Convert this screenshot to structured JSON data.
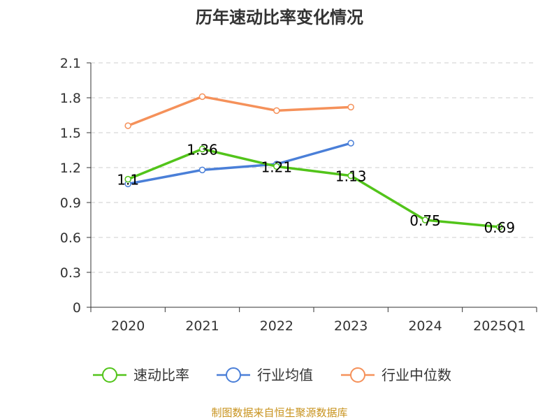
{
  "chart_data": {
    "type": "line",
    "title": "历年速动比率变化情况",
    "categories": [
      "2020",
      "2021",
      "2022",
      "2023",
      "2024",
      "2025Q1"
    ],
    "ylim": [
      0,
      2.1
    ],
    "yticks": [
      "0",
      "0.3",
      "0.6",
      "0.9",
      "1.2",
      "1.5",
      "1.8",
      "2.1"
    ],
    "ytick_values": [
      0,
      0.3,
      0.6,
      0.9,
      1.2,
      1.5,
      1.8,
      2.1
    ],
    "grid": true,
    "legend_position": "bottom",
    "series": [
      {
        "name": "速动比率",
        "color": "#52c41a",
        "values": [
          1.1,
          1.36,
          1.21,
          1.13,
          0.75,
          0.69
        ],
        "labels": [
          "1.1",
          "1.36",
          "1.21",
          "1.13",
          "0.75",
          "0.69"
        ]
      },
      {
        "name": "行业均值",
        "color": "#4a7fd8",
        "values": [
          1.06,
          1.18,
          1.23,
          1.41,
          null,
          null
        ]
      },
      {
        "name": "行业中位数",
        "color": "#f5915a",
        "values": [
          1.56,
          1.81,
          1.69,
          1.72,
          null,
          null
        ]
      }
    ],
    "source": "制图数据来自恒生聚源数据库"
  }
}
